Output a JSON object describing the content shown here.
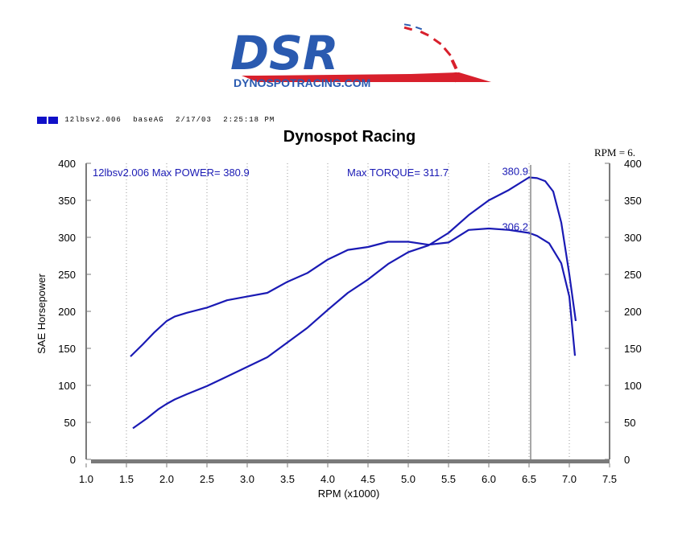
{
  "logo": {
    "mark": "DSR",
    "site": "DYNOSPOTRACING.COM"
  },
  "run_info": {
    "run": "12lbsv2.006",
    "operator": "baseAG",
    "date": "2/17/03",
    "time": "2:25:18 PM"
  },
  "colors": {
    "series": "#1a1ab4",
    "swatch": "#1010c8",
    "logo_blue": "#2a5ab0",
    "logo_red": "#d8202c",
    "cursor": "#8a8a8a",
    "axis": "#7a7a7a"
  },
  "chart_data": {
    "type": "line",
    "title": "Dynospot Racing",
    "xlabel": "RPM (x1000)",
    "ylabel": "SAE Horsepower",
    "xlim": [
      1.0,
      7.5
    ],
    "ylim": [
      0,
      400
    ],
    "x_ticks": [
      "1.0",
      "1.5",
      "2.0",
      "2.5",
      "3.0",
      "3.5",
      "4.0",
      "4.5",
      "5.0",
      "5.5",
      "6.0",
      "6.5",
      "7.0",
      "7.5"
    ],
    "y_ticks": [
      "0",
      "50",
      "100",
      "150",
      "200",
      "250",
      "300",
      "350",
      "400"
    ],
    "grid": "vertical dotted",
    "cursor_rpm": 6.52,
    "cursor_label": "RPM = 6.",
    "header_left": "12lbsv2.006  Max POWER= 380.9",
    "header_right": "Max TORQUE= 311.7",
    "power_marker": "380.9",
    "torque_marker": "306.2",
    "series": [
      {
        "id": "power",
        "x": [
          1.58,
          1.75,
          1.9,
          2.0,
          2.1,
          2.25,
          2.5,
          2.75,
          3.0,
          3.25,
          3.5,
          3.75,
          4.0,
          4.25,
          4.5,
          4.75,
          5.0,
          5.25,
          5.5,
          5.75,
          6.0,
          6.25,
          6.5,
          6.6,
          6.7,
          6.8,
          6.9,
          7.0,
          7.08
        ],
        "values": [
          42,
          55,
          68,
          75,
          81,
          88,
          99,
          112,
          125,
          138,
          158,
          178,
          202,
          225,
          243,
          264,
          280,
          289,
          306,
          330,
          350,
          364,
          381,
          380,
          376,
          362,
          320,
          250,
          187
        ]
      },
      {
        "id": "torque",
        "x": [
          1.55,
          1.7,
          1.85,
          2.0,
          2.1,
          2.25,
          2.5,
          2.75,
          3.0,
          3.25,
          3.5,
          3.75,
          4.0,
          4.25,
          4.5,
          4.75,
          5.0,
          5.25,
          5.5,
          5.75,
          6.0,
          6.25,
          6.5,
          6.6,
          6.75,
          6.9,
          7.0,
          7.07
        ],
        "values": [
          139,
          155,
          172,
          187,
          193,
          198,
          205,
          215,
          220,
          225,
          240,
          252,
          270,
          283,
          287,
          294,
          294,
          290,
          293,
          310,
          312,
          310,
          306,
          302,
          292,
          265,
          220,
          140
        ]
      }
    ]
  }
}
